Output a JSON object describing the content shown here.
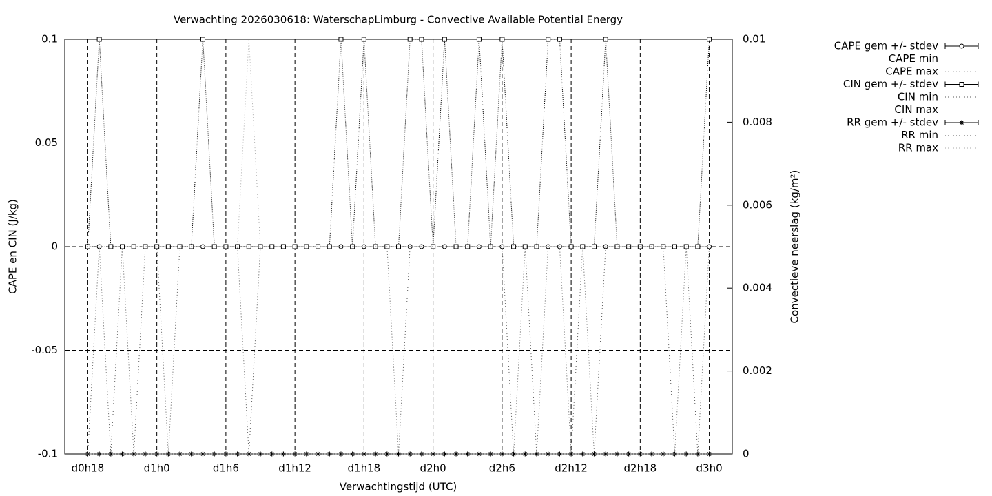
{
  "chart_data": {
    "type": "line",
    "title": "Verwachting 2026030618: WaterschapLimburg - Convective Available Potential Energy",
    "x_label": "Verwachtingstijd (UTC)",
    "y_label": "CAPE en CIN (J/kg)",
    "y2_label": "Convectieve neerslag (kg/m²)",
    "x": [
      18,
      19,
      20,
      21,
      22,
      23,
      24,
      25,
      26,
      27,
      28,
      29,
      30,
      31,
      32,
      33,
      34,
      35,
      36,
      37,
      38,
      39,
      40,
      41,
      42,
      43,
      44,
      45,
      46,
      47,
      48,
      49,
      50,
      51,
      52,
      53,
      54,
      55,
      56,
      57,
      58,
      59,
      60,
      61,
      62,
      63,
      64,
      65,
      66,
      67,
      68,
      69,
      70,
      71,
      72
    ],
    "xlim": [
      16,
      74
    ],
    "xticks": [
      {
        "value": 18,
        "label": "d0h18"
      },
      {
        "value": 24,
        "label": "d1h0"
      },
      {
        "value": 30,
        "label": "d1h6"
      },
      {
        "value": 36,
        "label": "d1h12"
      },
      {
        "value": 42,
        "label": "d1h18"
      },
      {
        "value": 48,
        "label": "d2h0"
      },
      {
        "value": 54,
        "label": "d2h6"
      },
      {
        "value": 60,
        "label": "d2h12"
      },
      {
        "value": 66,
        "label": "d2h18"
      },
      {
        "value": 72,
        "label": "d3h0"
      }
    ],
    "ylim": [
      -0.1,
      0.1
    ],
    "yticks": [
      -0.1,
      -0.05,
      0,
      0.05,
      0.1
    ],
    "y2lim": [
      0,
      0.01
    ],
    "y2ticks": [
      0,
      0.002,
      0.004,
      0.006,
      0.008,
      0.01
    ],
    "grid": true,
    "legend": "outside-right",
    "series": [
      {
        "name": "CAPE gem +/- stdev",
        "color": "#000000",
        "marker": "circle",
        "values": [
          0,
          0,
          0,
          0,
          0,
          0,
          0,
          0,
          0,
          0,
          0,
          0,
          0,
          0,
          0,
          0,
          0,
          0,
          0,
          0,
          0,
          0,
          0,
          0,
          0,
          0,
          0,
          0,
          0,
          0,
          0,
          0,
          0,
          0,
          0,
          0,
          0,
          0,
          0,
          0,
          0,
          0,
          0,
          0,
          0,
          0,
          0,
          0,
          0,
          0,
          0,
          0,
          0,
          0,
          0
        ]
      },
      {
        "name": "CAPE min",
        "color": "#aaaaaa",
        "marker": "none",
        "values": [
          0,
          0,
          0,
          0,
          0,
          0,
          0,
          0,
          0,
          0,
          0,
          0,
          0,
          0,
          0,
          0,
          0,
          0,
          0,
          0,
          0,
          0,
          0,
          0,
          0,
          0,
          0,
          0,
          0,
          0,
          0,
          0,
          0,
          0,
          0,
          0,
          0,
          0,
          0,
          0,
          0,
          0,
          0,
          0,
          0,
          0,
          0,
          0,
          0,
          0,
          0,
          0,
          0,
          0,
          0
        ]
      },
      {
        "name": "CAPE max",
        "color": "#aaaaaa",
        "marker": "none",
        "values": [
          0,
          0,
          0,
          0,
          0,
          0,
          0,
          0,
          0,
          0,
          0,
          0,
          0,
          0,
          0.1,
          0,
          0,
          0,
          0,
          0,
          0,
          0,
          0,
          0,
          0,
          0,
          0,
          0,
          0,
          0,
          0,
          0,
          0,
          0,
          0,
          0,
          0,
          0,
          0,
          0,
          0,
          0,
          0,
          0,
          0,
          0,
          0,
          0,
          0,
          0,
          0,
          0,
          0,
          0,
          0
        ]
      },
      {
        "name": "CIN gem +/- stdev",
        "color": "#000000",
        "marker": "square",
        "values": [
          0,
          0.1,
          0,
          0,
          0,
          0,
          0,
          0,
          0,
          0,
          0.1,
          0,
          0,
          0,
          0,
          0,
          0,
          0,
          0,
          0,
          0,
          0,
          0.1,
          0,
          0.1,
          0,
          0,
          0,
          0.1,
          0.1,
          0,
          0.1,
          0,
          0,
          0.1,
          0,
          0.1,
          0,
          0,
          0,
          0.1,
          0.1,
          0,
          0,
          0,
          0.1,
          0,
          0,
          0,
          0,
          0,
          0,
          0,
          0,
          0.1
        ]
      },
      {
        "name": "CIN min",
        "color": "#555555",
        "marker": "none",
        "values": [
          -0.1,
          0,
          -0.1,
          0,
          -0.1,
          0,
          0,
          -0.1,
          0,
          0,
          0,
          0,
          0,
          0,
          -0.1,
          0,
          0,
          0,
          0,
          0,
          0,
          0,
          0,
          0,
          0,
          0,
          0,
          -0.1,
          0,
          0,
          0,
          0,
          0,
          0,
          0,
          0,
          0,
          -0.1,
          0,
          -0.1,
          0,
          0,
          -0.1,
          0,
          -0.1,
          0,
          0,
          0,
          0,
          0,
          0,
          -0.1,
          0,
          -0.1,
          0
        ]
      },
      {
        "name": "CIN max",
        "color": "#aaaaaa",
        "marker": "none",
        "values": [
          0,
          0.1,
          0,
          0,
          0,
          0,
          0,
          0,
          0,
          0,
          0.1,
          0,
          0,
          0,
          0,
          0,
          0,
          0,
          0,
          0,
          0,
          0,
          0.1,
          0,
          0.1,
          0,
          0,
          0,
          0.1,
          0.1,
          0,
          0.1,
          0,
          0,
          0.1,
          0,
          0.1,
          0,
          0,
          0,
          0.1,
          0.1,
          0,
          0,
          0,
          0.1,
          0,
          0,
          0,
          0,
          0,
          0,
          0,
          0,
          0.1
        ]
      },
      {
        "name": "RR gem +/- stdev",
        "color": "#000000",
        "marker": "asterisk",
        "axis": "y2",
        "values": [
          0,
          0,
          0,
          0,
          0,
          0,
          0,
          0,
          0,
          0,
          0,
          0,
          0,
          0,
          0,
          0,
          0,
          0,
          0,
          0,
          0,
          0,
          0,
          0,
          0,
          0,
          0,
          0,
          0,
          0,
          0,
          0,
          0,
          0,
          0,
          0,
          0,
          0,
          0,
          0,
          0,
          0,
          0,
          0,
          0,
          0,
          0,
          0,
          0,
          0,
          0,
          0,
          0,
          0,
          0
        ]
      },
      {
        "name": "RR min",
        "color": "#aaaaaa",
        "marker": "none",
        "axis": "y2",
        "values": [
          0,
          0,
          0,
          0,
          0,
          0,
          0,
          0,
          0,
          0,
          0,
          0,
          0,
          0,
          0,
          0,
          0,
          0,
          0,
          0,
          0,
          0,
          0,
          0,
          0,
          0,
          0,
          0,
          0,
          0,
          0,
          0,
          0,
          0,
          0,
          0,
          0,
          0,
          0,
          0,
          0,
          0,
          0,
          0,
          0,
          0,
          0,
          0,
          0,
          0,
          0,
          0,
          0,
          0,
          0
        ]
      },
      {
        "name": "RR max",
        "color": "#aaaaaa",
        "marker": "none",
        "axis": "y2",
        "values": [
          0,
          0,
          0,
          0,
          0,
          0,
          0,
          0,
          0,
          0,
          0,
          0,
          0,
          0,
          0,
          0,
          0,
          0,
          0,
          0,
          0,
          0,
          0,
          0,
          0,
          0,
          0,
          0,
          0,
          0,
          0,
          0,
          0,
          0,
          0,
          0,
          0,
          0,
          0,
          0,
          0,
          0,
          0,
          0,
          0,
          0,
          0,
          0,
          0,
          0,
          0,
          0,
          0,
          0,
          0
        ]
      }
    ]
  }
}
